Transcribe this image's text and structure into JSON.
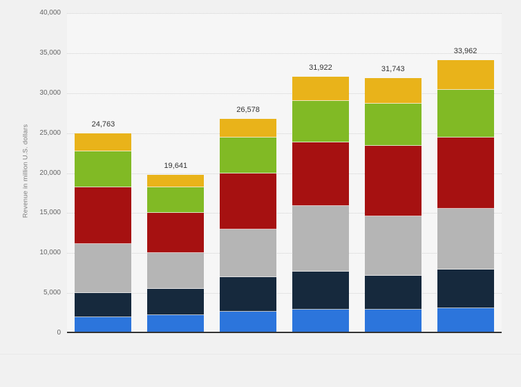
{
  "colors": {
    "background": "#f1f1f1",
    "plot_background": "#f6f6f6",
    "gridline": "#d2d2d2",
    "axis_line": "#333333",
    "tick_text": "#636363",
    "value_label_text": "#333333"
  },
  "y_axis": {
    "title": "Revenue in million U.S. dollars",
    "min": 0,
    "max": 40000,
    "tick_step": 5000,
    "ticks": [
      0,
      5000,
      10000,
      15000,
      20000,
      25000,
      30000,
      35000,
      40000
    ],
    "tick_labels": [
      "0",
      "5,000",
      "10,000",
      "15,000",
      "20,000",
      "25,000",
      "30,000",
      "35,000",
      "40,000"
    ]
  },
  "chart_data": {
    "type": "bar",
    "stacked": true,
    "title": "",
    "xlabel": "",
    "ylabel": "Revenue in million U.S. dollars",
    "ylim": [
      0,
      40000
    ],
    "grid": true,
    "legend": false,
    "categories": [
      "",
      "",
      "",
      "",
      "",
      ""
    ],
    "totals": [
      24763,
      19641,
      26578,
      31922,
      31743,
      33962
    ],
    "total_labels": [
      "24,763",
      "19,641",
      "26,578",
      "31,922",
      "31,743",
      "33,962"
    ],
    "series": [
      {
        "name": "segment-blue",
        "color": "#2c75dc",
        "values": [
          1830,
          2103,
          2536,
          2771,
          2776,
          2925
        ]
      },
      {
        "name": "segment-dark-blue",
        "color": "#16293d",
        "values": [
          2990,
          3262,
          4277,
          4762,
          4189,
          4826
        ]
      },
      {
        "name": "segment-gray",
        "color": "#b5b5b5",
        "values": [
          6185,
          4525,
          5973,
          8225,
          7433,
          7612
        ]
      },
      {
        "name": "segment-dark-red",
        "color": "#a61111",
        "values": [
          7090,
          4932,
          7013,
          7939,
          8846,
          8914
        ]
      },
      {
        "name": "segment-green",
        "color": "#81ba25",
        "values": [
          4440,
          3236,
          4467,
          5195,
          5264,
          5988
        ]
      },
      {
        "name": "segment-gold",
        "color": "#e9b31a",
        "values": [
          2228,
          1583,
          2312,
          3030,
          3235,
          3697
        ]
      }
    ]
  }
}
